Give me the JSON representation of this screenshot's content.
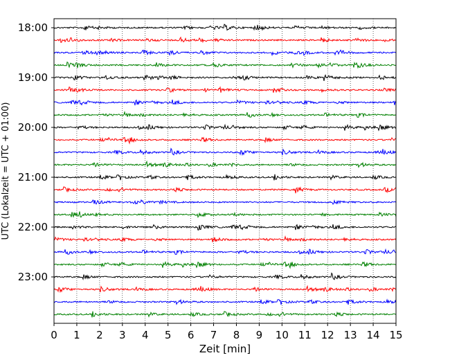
{
  "chart_data": {
    "type": "line",
    "title": "",
    "xlabel": "Zeit  [min]",
    "ylabel": "UTC (Lokalzeit = UTC + 01:00)",
    "xlim": [
      0,
      15
    ],
    "x_ticks": [
      0,
      1,
      2,
      3,
      4,
      5,
      6,
      7,
      8,
      9,
      10,
      11,
      12,
      13,
      14,
      15
    ],
    "x_tick_labels": [
      "0",
      "1",
      "2",
      "3",
      "4",
      "5",
      "6",
      "7",
      "8",
      "9",
      "10",
      "11",
      "12",
      "13",
      "14",
      "15"
    ],
    "y_tick_labels": [
      "18:00",
      "19:00",
      "20:00",
      "21:00",
      "22:00",
      "23:00"
    ],
    "trace_start_times": [
      "18:00",
      "18:15",
      "18:30",
      "18:45",
      "19:00",
      "19:15",
      "19:30",
      "19:45",
      "20:00",
      "20:15",
      "20:30",
      "20:45",
      "21:00",
      "21:15",
      "21:30",
      "21:45",
      "22:00",
      "22:15",
      "22:30",
      "22:45",
      "23:00",
      "23:15",
      "23:30",
      "23:45"
    ],
    "trace_color_cycle": [
      "#000000",
      "#ff0000",
      "#0000ff",
      "#008000"
    ],
    "grid": "vertical dotted lines at each minute",
    "legend": "none"
  }
}
